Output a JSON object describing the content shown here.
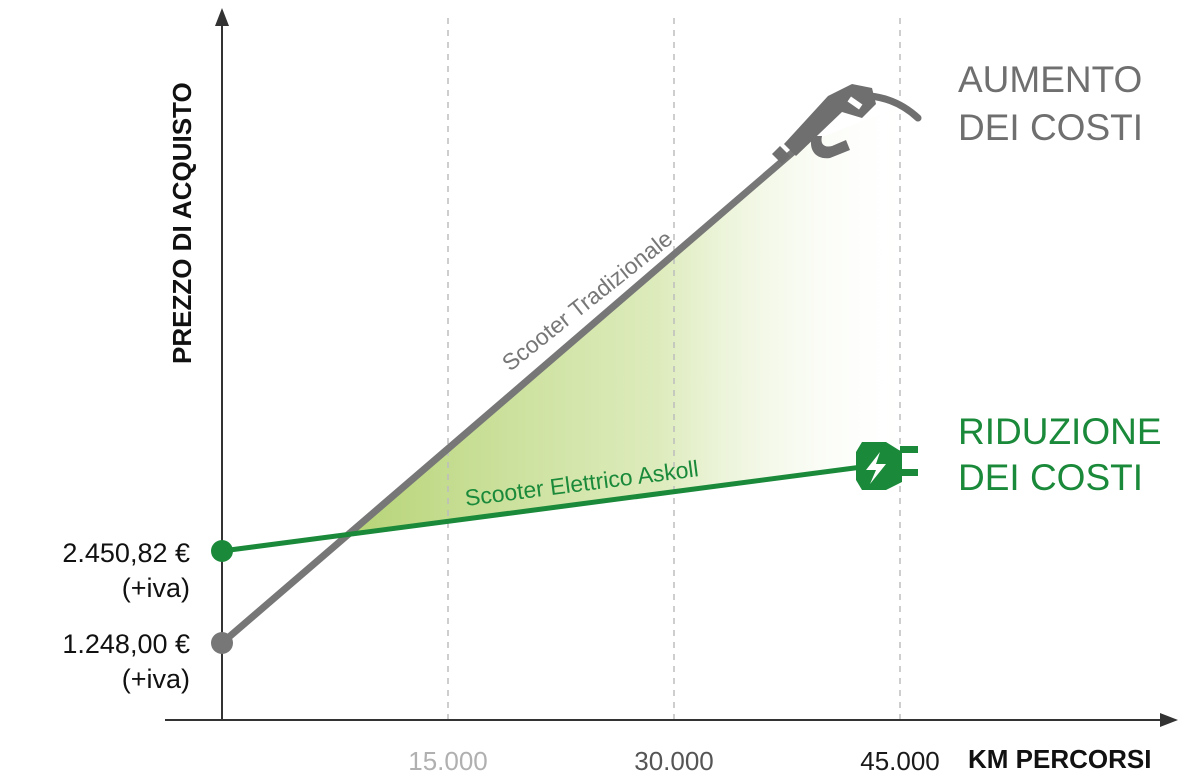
{
  "chart_data": {
    "type": "line",
    "xlabel": "KM PERCORSI",
    "ylabel": "PREZZO DI ACQUISTO",
    "x_ticks": [
      {
        "value": 15000,
        "label": "15.000",
        "color": "#b0b0b0"
      },
      {
        "value": 30000,
        "label": "30.000",
        "color": "#555555"
      },
      {
        "value": 45000,
        "label": "45.000",
        "color": "#1a1a1a"
      }
    ],
    "x_range": [
      0,
      53000
    ],
    "series": [
      {
        "name": "Scooter Tradizionale",
        "color": "#777777",
        "start_label": [
          "1.248,00 €",
          "(+iva)"
        ],
        "start_value": 1248.0,
        "end_icon": "fuel-nozzle-icon"
      },
      {
        "name": "Scooter Elettrico Askoll",
        "color": "#1a8a3a",
        "start_label": [
          "2.450,82 €",
          "(+iva)"
        ],
        "start_value": 2450.82,
        "end_icon": "electric-plug-icon"
      }
    ],
    "annotations": [
      {
        "lines": [
          "AUMENTO",
          "DEI COSTI"
        ],
        "color": "#6f6f6f"
      },
      {
        "lines": [
          "RIDUZIONE",
          "DEI COSTI"
        ],
        "color": "#1a8a3a"
      }
    ],
    "fill_color": "#b8d67a",
    "grid": "vertical dashed"
  }
}
